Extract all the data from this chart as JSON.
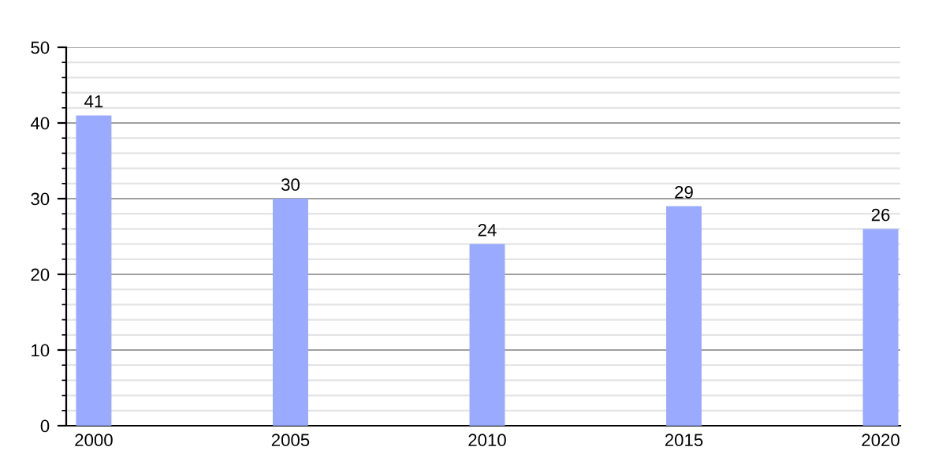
{
  "chart_data": {
    "type": "bar",
    "x": [
      2000,
      2005,
      2010,
      2015,
      2020
    ],
    "values": [
      41,
      30,
      24,
      29,
      26
    ],
    "color": "#99aaff",
    "data_labels": true,
    "xlim": [
      1999.3,
      2020.5
    ],
    "xticks": [
      2000,
      2005,
      2010,
      2015,
      2020
    ],
    "ylim": [
      0,
      50
    ],
    "yticks": [
      0,
      10,
      20,
      30,
      40,
      50
    ],
    "grid": "y"
  }
}
